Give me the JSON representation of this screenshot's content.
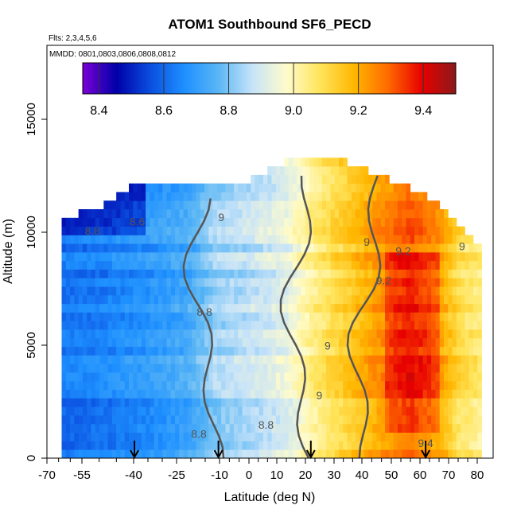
{
  "chart_data": {
    "type": "heatmap",
    "title": "ATOM1 Southbound SF6_PECD",
    "flights_note": "Flts: 2,3,4,5,6",
    "dates_note": "MMDD: 0801,0803,0806,0808,0812",
    "xlabel": "Latitude (deg N)",
    "ylabel": "Altitude (m)",
    "xlim": [
      -70,
      80
    ],
    "ylim": [
      0,
      17500
    ],
    "x_ticks": [
      -70,
      -55,
      -40,
      -25,
      -10,
      0,
      10,
      20,
      30,
      40,
      50,
      60,
      70,
      80
    ],
    "y_ticks": [
      0,
      5000,
      10000,
      15000
    ],
    "colorbar": {
      "range": [
        8.35,
        9.5
      ],
      "ticks": [
        8.4,
        8.6,
        8.8,
        9.0,
        9.2,
        9.4
      ],
      "tick_labels": [
        "8.4",
        "8.6",
        "8.8",
        "9.0",
        "9.2",
        "9.4"
      ],
      "colors": [
        "#7b00d6",
        "#0000a8",
        "#0a4fe0",
        "#1e90ff",
        "#5ab6f5",
        "#c6e3f8",
        "#fffccc",
        "#ffe45a",
        "#ffb700",
        "#ff6a00",
        "#e80000",
        "#8b1a1a"
      ]
    },
    "contour_levels": [
      8.6,
      8.8,
      9.0,
      9.2
    ],
    "contour_labels": [
      {
        "text": "8.8",
        "lat": -58,
        "alt": 9900
      },
      {
        "text": "8.6",
        "lat": -42,
        "alt": 10300
      },
      {
        "text": "9",
        "lat": -12,
        "alt": 10500
      },
      {
        "text": "8.8",
        "lat": -18,
        "alt": 6300
      },
      {
        "text": "8.8",
        "lat": -20,
        "alt": 900
      },
      {
        "text": "8.8",
        "lat": 4,
        "alt": 1300
      },
      {
        "text": "9",
        "lat": 26,
        "alt": 4800
      },
      {
        "text": "9",
        "lat": 23,
        "alt": 2600
      },
      {
        "text": "9",
        "lat": 40,
        "alt": 9400
      },
      {
        "text": "9.2",
        "lat": 53,
        "alt": 9000
      },
      {
        "text": "9.2",
        "lat": 46,
        "alt": 7700
      },
      {
        "text": "9.4",
        "lat": 61,
        "alt": 500
      },
      {
        "text": "9",
        "lat": 74,
        "alt": 9200
      }
    ],
    "profile_markers_lat": [
      -43,
      -13,
      20,
      61
    ],
    "field_profile": {
      "lat": [
        -70,
        -55,
        -40,
        -25,
        -15,
        -5,
        5,
        12,
        18,
        25,
        35,
        45,
        55,
        65,
        72,
        80
      ],
      "value": [
        8.62,
        8.64,
        8.68,
        8.73,
        8.83,
        8.86,
        8.9,
        8.94,
        9.02,
        9.08,
        9.16,
        9.24,
        9.3,
        9.22,
        9.1,
        9.05
      ]
    },
    "altitude_top_profile": {
      "lat": [
        -68,
        -55,
        -45,
        -30,
        -20,
        -10,
        0,
        10,
        20,
        30,
        40,
        50,
        60,
        70,
        78
      ],
      "alt": [
        10500,
        11000,
        11800,
        11800,
        11800,
        12000,
        12200,
        13000,
        13300,
        13000,
        12500,
        12000,
        11500,
        10500,
        9500
      ]
    }
  }
}
